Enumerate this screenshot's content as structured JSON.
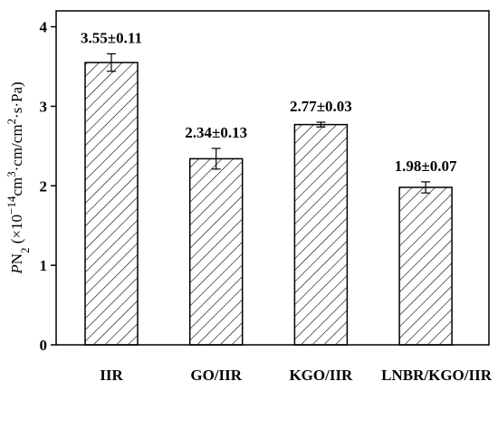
{
  "chart_data": {
    "type": "bar",
    "categories": [
      "IIR",
      "GO/IIR",
      "KGO/IIR",
      "LNBR/KGO/IIR"
    ],
    "values": [
      3.55,
      2.34,
      2.77,
      1.98
    ],
    "errors": [
      0.11,
      0.13,
      0.03,
      0.07
    ],
    "value_labels": [
      "3.55±0.11",
      "2.34±0.13",
      "2.77±0.03",
      "1.98±0.07"
    ],
    "color": "#000000",
    "fill": "hatch",
    "ylim": [
      0,
      4.2
    ],
    "yticks": [
      0,
      1,
      2,
      3,
      4
    ],
    "ylabel": [
      {
        "text": "P",
        "style": "italic"
      },
      {
        "text": "N"
      },
      {
        "text": "2",
        "style": "sub"
      },
      {
        "text": " (×10"
      },
      {
        "text": "−14",
        "style": "sup"
      },
      {
        "text": "cm"
      },
      {
        "text": "3",
        "style": "sup"
      },
      {
        "text": "·cm/cm"
      },
      {
        "text": "2",
        "style": "sup"
      },
      {
        "text": "·s·Pa)"
      }
    ]
  }
}
